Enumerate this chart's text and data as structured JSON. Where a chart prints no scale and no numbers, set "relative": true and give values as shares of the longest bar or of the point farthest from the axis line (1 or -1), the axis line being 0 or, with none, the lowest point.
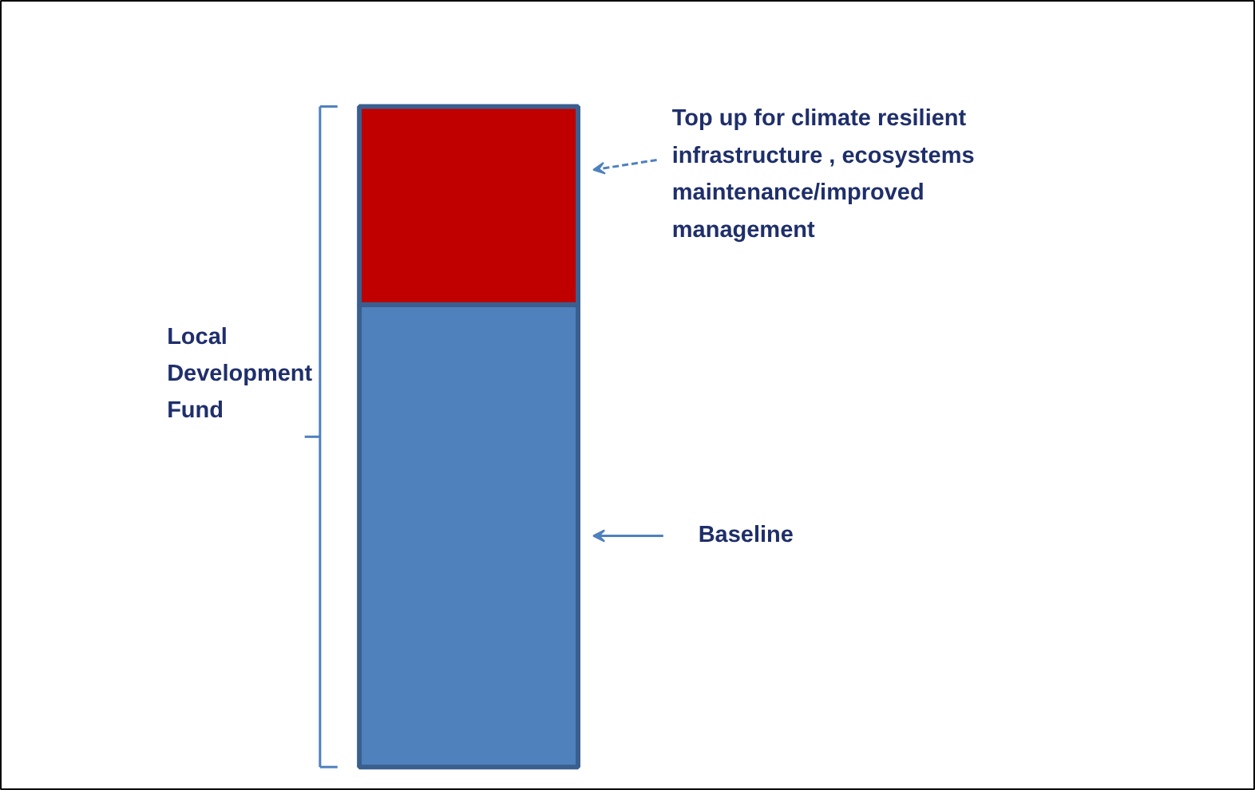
{
  "chart_data": {
    "type": "bar",
    "stacked": true,
    "relative": true,
    "categories": [
      null
    ],
    "series": [
      {
        "name": "Baseline",
        "color": "#4f81bd",
        "values": [
          0.7
        ]
      },
      {
        "name": "Top up for climate resilient\ninfrastructure , ecosystems\nmaintenance/improved\nmanagement",
        "color": "#c00000",
        "values": [
          0.3
        ]
      }
    ],
    "annotations": [
      "Local\nDevelopment\nFund"
    ]
  }
}
